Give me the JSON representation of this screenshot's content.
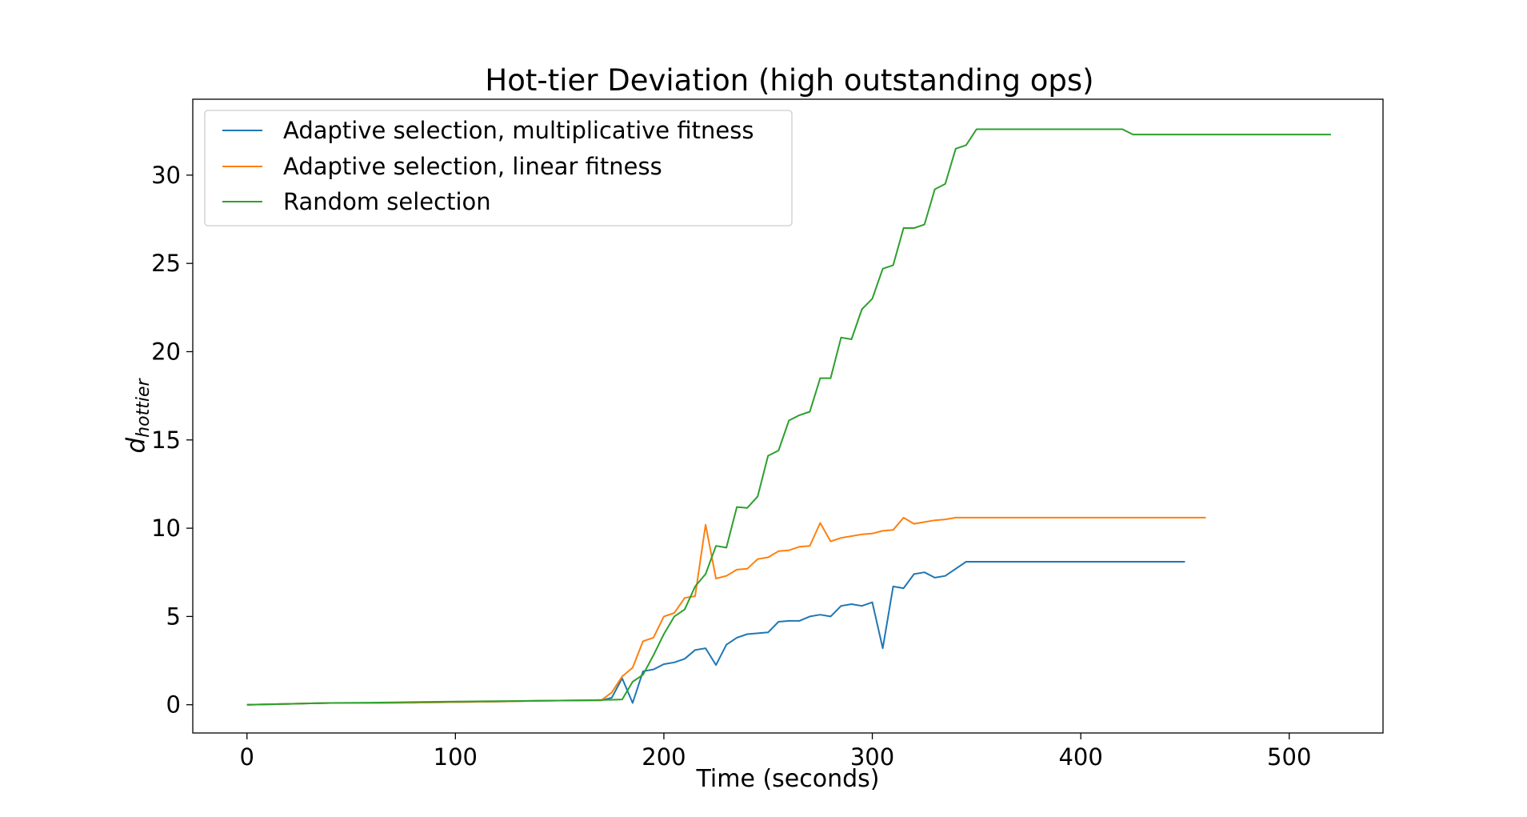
{
  "chart_data": {
    "type": "line",
    "title": "Hot-tier Deviation (high outstanding ops)",
    "xlabel": "Time (seconds)",
    "ylabel_main": "d",
    "ylabel_sub": "hottier",
    "xlim": [
      -26,
      545
    ],
    "ylim": [
      -1.6,
      34.3
    ],
    "xticks": [
      0,
      100,
      200,
      300,
      400,
      500
    ],
    "yticks": [
      0,
      5,
      10,
      15,
      20,
      25,
      30
    ],
    "grid": false,
    "legend_position": "upper-left",
    "series": [
      {
        "name": "Adaptive selection, multiplicative fitness",
        "color": "#1f77b4",
        "x": [
          0,
          20,
          40,
          60,
          80,
          100,
          120,
          140,
          160,
          170,
          175,
          180,
          185,
          190,
          195,
          200,
          205,
          210,
          215,
          220,
          225,
          230,
          235,
          240,
          245,
          250,
          255,
          260,
          265,
          270,
          275,
          280,
          285,
          290,
          295,
          300,
          305,
          310,
          315,
          320,
          325,
          330,
          335,
          340,
          345,
          350,
          360,
          380,
          400,
          420,
          440,
          450
        ],
        "y": [
          0,
          0.05,
          0.1,
          0.1,
          0.12,
          0.15,
          0.18,
          0.22,
          0.25,
          0.25,
          0.4,
          1.5,
          0.1,
          1.9,
          2.0,
          2.3,
          2.4,
          2.6,
          3.1,
          3.2,
          2.25,
          3.4,
          3.8,
          4.0,
          4.05,
          4.1,
          4.7,
          4.75,
          4.75,
          5.0,
          5.1,
          5.0,
          5.6,
          5.7,
          5.6,
          5.8,
          3.2,
          6.7,
          6.6,
          7.4,
          7.5,
          7.2,
          7.3,
          7.7,
          8.1,
          8.1,
          8.1,
          8.1,
          8.1,
          8.1,
          8.1,
          8.1
        ]
      },
      {
        "name": "Adaptive selection, linear fitness",
        "color": "#ff7f0e",
        "x": [
          0,
          20,
          40,
          60,
          80,
          100,
          120,
          140,
          160,
          170,
          175,
          180,
          185,
          190,
          195,
          200,
          205,
          210,
          215,
          220,
          225,
          230,
          235,
          240,
          245,
          250,
          255,
          260,
          265,
          270,
          275,
          280,
          285,
          290,
          295,
          300,
          305,
          310,
          315,
          320,
          325,
          330,
          335,
          340,
          360,
          380,
          400,
          420,
          440,
          460
        ],
        "y": [
          0,
          0.05,
          0.1,
          0.1,
          0.12,
          0.15,
          0.18,
          0.22,
          0.25,
          0.25,
          0.7,
          1.6,
          2.1,
          3.6,
          3.8,
          5.0,
          5.2,
          6.05,
          6.15,
          10.2,
          7.15,
          7.3,
          7.65,
          7.7,
          8.25,
          8.35,
          8.7,
          8.75,
          8.95,
          9.0,
          10.3,
          9.25,
          9.45,
          9.55,
          9.65,
          9.7,
          9.85,
          9.9,
          10.6,
          10.25,
          10.35,
          10.45,
          10.5,
          10.6,
          10.6,
          10.6,
          10.6,
          10.6,
          10.6,
          10.6
        ]
      },
      {
        "name": "Random selection",
        "color": "#2ca02c",
        "x": [
          0,
          20,
          40,
          60,
          80,
          100,
          120,
          140,
          160,
          170,
          175,
          180,
          185,
          190,
          195,
          200,
          205,
          210,
          215,
          220,
          225,
          230,
          235,
          240,
          245,
          250,
          255,
          260,
          265,
          270,
          275,
          280,
          285,
          290,
          295,
          300,
          305,
          310,
          315,
          320,
          325,
          330,
          335,
          340,
          345,
          350,
          360,
          380,
          400,
          420,
          425,
          440,
          460,
          480,
          500,
          520
        ],
        "y": [
          0,
          0.05,
          0.1,
          0.12,
          0.15,
          0.18,
          0.2,
          0.22,
          0.25,
          0.27,
          0.28,
          0.3,
          1.3,
          1.7,
          2.8,
          4.0,
          5.0,
          5.4,
          6.7,
          7.4,
          9.0,
          8.9,
          11.2,
          11.15,
          11.8,
          14.1,
          14.4,
          16.1,
          16.4,
          16.6,
          18.5,
          18.5,
          20.8,
          20.7,
          22.4,
          23.0,
          24.7,
          24.9,
          27.0,
          27.0,
          27.2,
          29.2,
          29.5,
          31.5,
          31.7,
          32.6,
          32.6,
          32.6,
          32.6,
          32.6,
          32.3,
          32.3,
          32.3,
          32.3,
          32.3,
          32.3
        ]
      }
    ]
  }
}
